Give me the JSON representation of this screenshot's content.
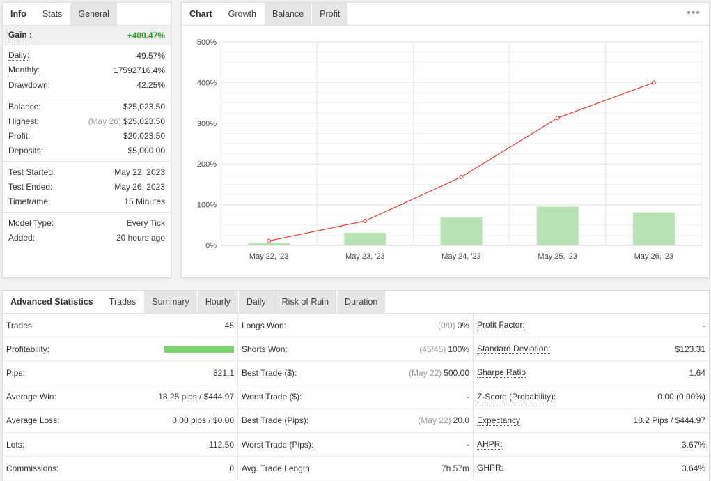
{
  "left_tabs": [
    "Info",
    "Stats",
    "General"
  ],
  "gain": {
    "label": "Gain :",
    "value": "+400.47%"
  },
  "rows1": [
    {
      "label": "Daily:",
      "value": "49.57%"
    },
    {
      "label": "Monthly:",
      "value": "17592716.4%"
    },
    {
      "label": "Drawdown:",
      "value": "42.25%"
    }
  ],
  "rows2": [
    {
      "label": "Balance:",
      "value": "$25,023.50"
    },
    {
      "label": "Highest:",
      "note": "(May 26)",
      "value": "$25,023.50"
    },
    {
      "label": "Profit:",
      "value": "$20,023.50"
    },
    {
      "label": "Deposits:",
      "value": "$5,000.00"
    }
  ],
  "rows3": [
    {
      "label": "Test Started:",
      "value": "May 22, 2023"
    },
    {
      "label": "Test Ended:",
      "value": "May 26, 2023"
    },
    {
      "label": "Timeframe:",
      "value": "15 Minutes"
    }
  ],
  "rows4": [
    {
      "label": "Model Type:",
      "value": "Every Tick"
    },
    {
      "label": "Added:",
      "value": "20 hours ago"
    }
  ],
  "chart_tabs": [
    "Chart",
    "Growth",
    "Balance",
    "Profit"
  ],
  "chart_menu_icon": "more-dots-icon",
  "colors": {
    "line": "#e03a2e",
    "bar": "#b7e2b3",
    "profit": "#2aa12a",
    "bar_fill": "#7fd36f"
  },
  "chart_data": {
    "type": "bar+line",
    "categories": [
      "May 22, '23",
      "May 23, '23",
      "May 24, '23",
      "May 25, '23",
      "May 26, '23"
    ],
    "series": [
      {
        "type": "bar",
        "values": [
          6,
          31,
          68,
          95,
          81
        ]
      },
      {
        "type": "line",
        "values": [
          11,
          60,
          168,
          313,
          400
        ]
      }
    ],
    "ylim": [
      0,
      500
    ],
    "yticks": [
      "0%",
      "100%",
      "200%",
      "300%",
      "400%",
      "500%"
    ],
    "grid": true
  },
  "bottom_tabs": [
    "Advanced Statistics",
    "Trades",
    "Summary",
    "Hourly",
    "Daily",
    "Risk of Ruin",
    "Duration"
  ],
  "col1": [
    {
      "label": "Trades:",
      "value": "45"
    },
    {
      "label": "Profitability:",
      "bar_fraction": 1.0
    },
    {
      "label": "Pips:",
      "value": "821.1"
    },
    {
      "label": "Average Win:",
      "value": "18.25 pips / $444.97"
    },
    {
      "label": "Average Loss:",
      "value": "0.00 pips / $0.00"
    },
    {
      "label": "Lots:",
      "value": "112.50"
    },
    {
      "label": "Commissions:",
      "value": "0"
    }
  ],
  "col2": [
    {
      "label": "Longs Won:",
      "note": "(0/0)",
      "value": "0%"
    },
    {
      "label": "Shorts Won:",
      "note": "(45/45)",
      "value": "100%"
    },
    {
      "label": "Best Trade ($):",
      "note": "(May 22)",
      "value": "500.00"
    },
    {
      "label": "Worst Trade ($):",
      "value": "-"
    },
    {
      "label": "Best Trade (Pips):",
      "note": "(May 22)",
      "value": "20.0"
    },
    {
      "label": "Worst Trade (Pips):",
      "value": "-"
    },
    {
      "label": "Avg. Trade Length:",
      "value": "7h 57m"
    }
  ],
  "col3": [
    {
      "label": "Profit Factor:",
      "value": "-"
    },
    {
      "label": "Standard Deviation:",
      "value": "$123.31"
    },
    {
      "label": "Sharpe Ratio",
      "value": "1.64"
    },
    {
      "label": "Z-Score (Probability):",
      "value": "0.00 (0.00%)"
    },
    {
      "label": "Expectancy",
      "value": "18.2 Pips / $444.97"
    },
    {
      "label": "AHPR:",
      "value": "3.67%"
    },
    {
      "label": "GHPR:",
      "value": "3.64%"
    }
  ]
}
